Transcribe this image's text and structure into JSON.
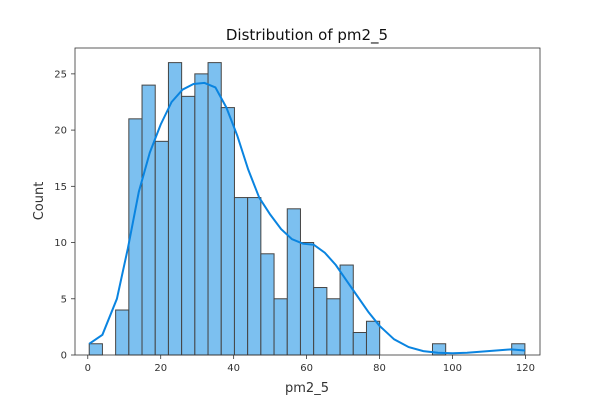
{
  "chart_data": {
    "type": "bar",
    "title": "Distribution of pm2_5",
    "xlabel": "pm2_5",
    "ylabel": "Count",
    "xlim": [
      -3.5,
      124
    ],
    "ylim": [
      0,
      27.3
    ],
    "grid": false,
    "bin_width": 3.62,
    "bins": [
      {
        "start": 0.4,
        "end": 4.02,
        "count": 1
      },
      {
        "start": 4.02,
        "end": 7.64,
        "count": 0
      },
      {
        "start": 7.64,
        "end": 11.26,
        "count": 4
      },
      {
        "start": 11.26,
        "end": 14.88,
        "count": 21
      },
      {
        "start": 14.88,
        "end": 18.5,
        "count": 24
      },
      {
        "start": 18.5,
        "end": 22.12,
        "count": 19
      },
      {
        "start": 22.12,
        "end": 25.74,
        "count": 26
      },
      {
        "start": 25.74,
        "end": 29.36,
        "count": 23
      },
      {
        "start": 29.36,
        "end": 32.98,
        "count": 25
      },
      {
        "start": 32.98,
        "end": 36.6,
        "count": 26
      },
      {
        "start": 36.6,
        "end": 40.22,
        "count": 22
      },
      {
        "start": 40.22,
        "end": 43.84,
        "count": 14
      },
      {
        "start": 43.84,
        "end": 47.46,
        "count": 14
      },
      {
        "start": 47.46,
        "end": 51.08,
        "count": 9
      },
      {
        "start": 51.08,
        "end": 54.7,
        "count": 5
      },
      {
        "start": 54.7,
        "end": 58.32,
        "count": 13
      },
      {
        "start": 58.32,
        "end": 61.94,
        "count": 10
      },
      {
        "start": 61.94,
        "end": 65.56,
        "count": 6
      },
      {
        "start": 65.56,
        "end": 69.18,
        "count": 5
      },
      {
        "start": 69.18,
        "end": 72.8,
        "count": 8
      },
      {
        "start": 72.8,
        "end": 76.42,
        "count": 2
      },
      {
        "start": 76.42,
        "end": 80.04,
        "count": 3
      },
      {
        "start": 80.04,
        "end": 83.66,
        "count": 0
      },
      {
        "start": 83.66,
        "end": 87.28,
        "count": 0
      },
      {
        "start": 87.28,
        "end": 90.9,
        "count": 0
      },
      {
        "start": 90.9,
        "end": 94.52,
        "count": 0
      },
      {
        "start": 94.52,
        "end": 98.14,
        "count": 1
      },
      {
        "start": 98.14,
        "end": 101.76,
        "count": 0
      },
      {
        "start": 101.76,
        "end": 105.38,
        "count": 0
      },
      {
        "start": 105.38,
        "end": 109.0,
        "count": 0
      },
      {
        "start": 109.0,
        "end": 112.62,
        "count": 0
      },
      {
        "start": 112.62,
        "end": 116.24,
        "count": 0
      },
      {
        "start": 116.24,
        "end": 119.86,
        "count": 1
      }
    ],
    "kde_curve": {
      "x": [
        0.4,
        4.0,
        8.0,
        11.0,
        14.0,
        17.0,
        20.0,
        23.0,
        26.0,
        29.0,
        32.0,
        35.0,
        38.0,
        41.0,
        44.0,
        47.0,
        50.0,
        53.0,
        56.0,
        59.0,
        62.0,
        65.0,
        68.0,
        71.0,
        74.0,
        77.0,
        80.0,
        84.0,
        88.0,
        92.0,
        96.0,
        100.0,
        104.0,
        108.0,
        112.0,
        116.0,
        119.9
      ],
      "y": [
        1.0,
        1.8,
        5.0,
        9.5,
        14.5,
        18.0,
        20.5,
        22.5,
        23.6,
        24.1,
        24.2,
        23.8,
        22.0,
        19.5,
        16.5,
        14.0,
        12.5,
        11.2,
        10.3,
        9.9,
        9.8,
        9.1,
        8.0,
        6.6,
        5.2,
        3.8,
        2.6,
        1.4,
        0.7,
        0.35,
        0.2,
        0.15,
        0.2,
        0.3,
        0.4,
        0.5,
        0.4
      ]
    },
    "x_ticks": [
      0,
      20,
      40,
      60,
      80,
      100,
      120
    ],
    "y_ticks": [
      0,
      5,
      10,
      15,
      20,
      25
    ],
    "colors": {
      "bar_fill": "#7cc0f0",
      "bar_edge": "#444444",
      "kde_line": "#0a84e0"
    }
  }
}
